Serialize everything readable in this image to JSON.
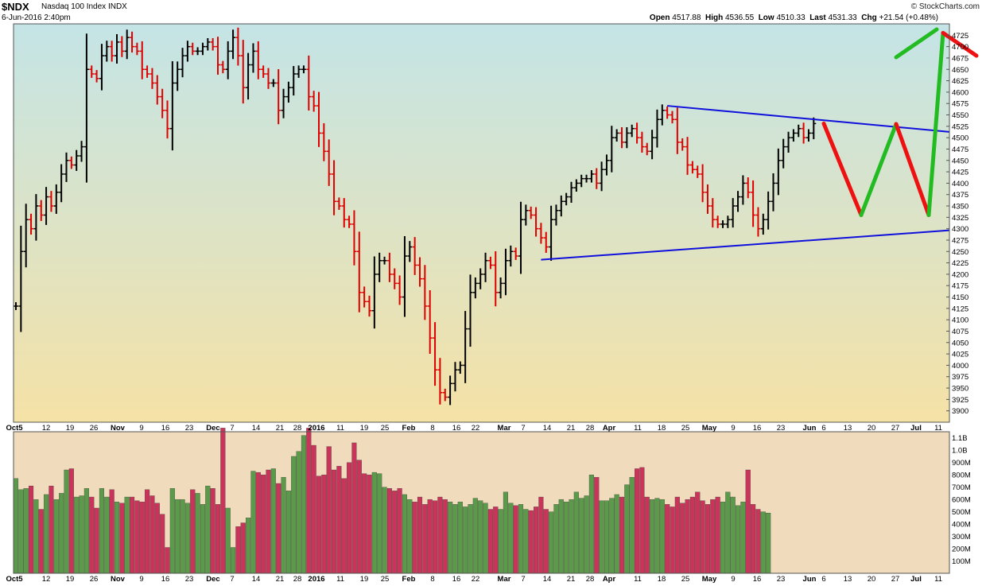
{
  "header": {
    "symbol": "$NDX",
    "name": "Nasdaq 100 Index",
    "exchange": "INDX",
    "date": "6-Jun-2016 2:40pm",
    "logo": "© StockCharts.com",
    "open_label": "Open",
    "open": "4517.88",
    "high_label": "High",
    "high": "4536.55",
    "low_label": "Low",
    "low": "4510.33",
    "last_label": "Last",
    "last": "4531.33",
    "chg_label": "Chg",
    "chg": "+21.54 (+0.48%)"
  },
  "colors": {
    "up": "#000000",
    "down": "#dd0000",
    "vol_up": "#5b9a4a",
    "vol_down": "#c9355a",
    "trend": "#1010dd",
    "proj_up": "#22bb22",
    "proj_down": "#ee1111"
  },
  "chart_data": [
    {
      "type": "ohlc",
      "ylim": [
        3875,
        4750
      ],
      "y_ticks": [
        "3900",
        "3925",
        "3950",
        "3975",
        "4000",
        "4025",
        "4050",
        "4075",
        "4100",
        "4125",
        "4150",
        "4175",
        "4200",
        "4225",
        "4250",
        "4275",
        "4300",
        "4325",
        "4350",
        "4375",
        "4400",
        "4425",
        "4450",
        "4475",
        "4500",
        "4525",
        "4550",
        "4575",
        "4600",
        "4625",
        "4650",
        "4675",
        "4700",
        "4725"
      ],
      "x_ticks": [
        "Oct5",
        "12",
        "19",
        "26",
        "Nov",
        "9",
        "16",
        "23",
        "Dec",
        "7",
        "14",
        "21",
        "28",
        "2016",
        "11",
        "19",
        "25",
        "Feb",
        "8",
        "16",
        "22",
        "Mar",
        "7",
        "14",
        "21",
        "28",
        "Apr",
        "11",
        "18",
        "25",
        "May",
        "9",
        "16",
        "23",
        "Jun",
        "6",
        "13",
        "20",
        "27",
        "Jul",
        "11"
      ],
      "closes": [
        4130,
        4250,
        4320,
        4300,
        4350,
        4330,
        4370,
        4350,
        4380,
        4420,
        4450,
        4440,
        4460,
        4480,
        4650,
        4640,
        4630,
        4680,
        4700,
        4680,
        4710,
        4690,
        4720,
        4700,
        4690,
        4650,
        4640,
        4620,
        4590,
        4560,
        4520,
        4620,
        4650,
        4680,
        4700,
        4690,
        4690,
        4700,
        4710,
        4700,
        4660,
        4650,
        4690,
        4720,
        4680,
        4610,
        4660,
        4690,
        4650,
        4640,
        4620,
        4620,
        4560,
        4590,
        4610,
        4640,
        4650,
        4650,
        4590,
        4570,
        4510,
        4470,
        4420,
        4360,
        4350,
        4320,
        4310,
        4250,
        4160,
        4140,
        4120,
        4200,
        4230,
        4230,
        4200,
        4180,
        4150,
        4240,
        4260,
        4220,
        4190,
        4130,
        4060,
        3990,
        3940,
        3930,
        3960,
        3990,
        4000,
        4080,
        4160,
        4180,
        4200,
        4230,
        4220,
        4160,
        4180,
        4230,
        4250,
        4240,
        4320,
        4340,
        4330,
        4300,
        4280,
        4260,
        4320,
        4340,
        4360,
        4370,
        4390,
        4400,
        4410,
        4410,
        4420,
        4400,
        4430,
        4450,
        4500,
        4510,
        4490,
        4510,
        4520,
        4500,
        4480,
        4470,
        4500,
        4540,
        4560,
        4550,
        4540,
        4490,
        4480,
        4440,
        4430,
        4420,
        4380,
        4350,
        4320,
        4310,
        4310,
        4320,
        4350,
        4370,
        4400,
        4380,
        4330,
        4300,
        4320,
        4360,
        4400,
        4450,
        4480,
        4500,
        4510,
        4520,
        4500,
        4510,
        4531
      ],
      "projection": [
        4531,
        4330,
        4530,
        4330,
        4730,
        4680
      ],
      "trendlines": [
        [
          4232,
          4527
        ],
        [
          4570,
          4525
        ]
      ]
    },
    {
      "type": "bar",
      "ylim": [
        0,
        1150000000
      ],
      "y_ticks": [
        "100M",
        "200M",
        "300M",
        "400M",
        "500M",
        "600M",
        "700M",
        "800M",
        "900M",
        "1.0B",
        "1.1B"
      ],
      "values": [
        770,
        680,
        690,
        710,
        600,
        520,
        640,
        710,
        600,
        650,
        840,
        850,
        620,
        630,
        690,
        620,
        530,
        690,
        620,
        680,
        580,
        570,
        620,
        620,
        590,
        580,
        680,
        630,
        570,
        480,
        210,
        690,
        600,
        600,
        570,
        680,
        650,
        560,
        710,
        690,
        560,
        1180,
        530,
        210,
        380,
        410,
        450,
        830,
        820,
        800,
        840,
        850,
        730,
        780,
        670,
        950,
        990,
        1120,
        1180,
        1040,
        790,
        800,
        1030,
        840,
        870,
        770,
        900,
        1060,
        920,
        810,
        800,
        820,
        810,
        700,
        690,
        670,
        690,
        640,
        600,
        580,
        620,
        560,
        600,
        590,
        620,
        600,
        580,
        560,
        580,
        540,
        560,
        610,
        590,
        570,
        520,
        540,
        520,
        660,
        570,
        550,
        560,
        520,
        510,
        540,
        620,
        520,
        500,
        560,
        600,
        580,
        600,
        660,
        610,
        630,
        800,
        780,
        590,
        590,
        610,
        640,
        620,
        720,
        780,
        850,
        860,
        620,
        600,
        610,
        600,
        560,
        540,
        620,
        570,
        600,
        620,
        660,
        590,
        560,
        600,
        620,
        580,
        660,
        620,
        550,
        580,
        840,
        560,
        520,
        500,
        490
      ]
    }
  ]
}
